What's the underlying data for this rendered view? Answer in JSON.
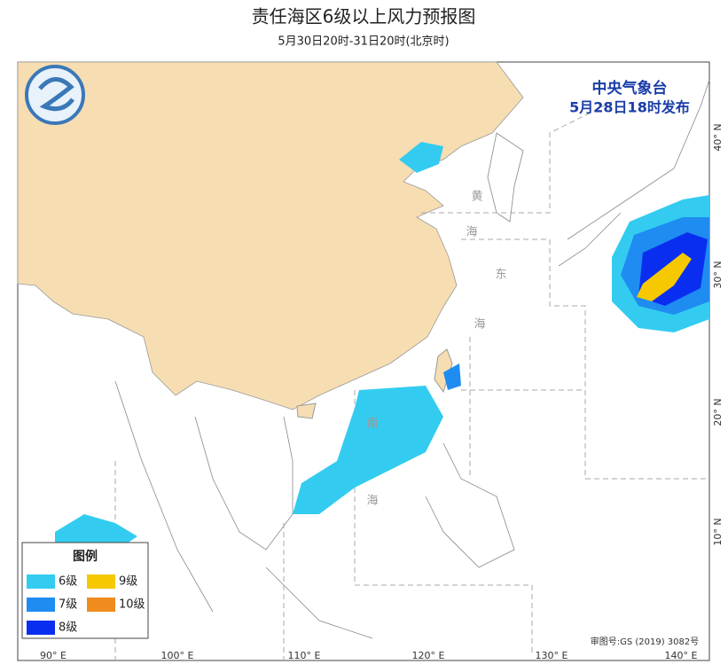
{
  "header": {
    "title": "责任海区6级以上风力预报图",
    "subtitle": "5月30日20时-31日20时(北京时)"
  },
  "issuer": {
    "agency": "中央气象台",
    "issued": "5月28日18时发布"
  },
  "legend": {
    "title": "图例",
    "items": [
      {
        "label": "6级",
        "color": "#33ccf0"
      },
      {
        "label": "7级",
        "color": "#1e8cf0"
      },
      {
        "label": "8级",
        "color": "#0a2ef0"
      },
      {
        "label": "9级",
        "color": "#f5c800"
      },
      {
        "label": "10级",
        "color": "#f08c1e"
      }
    ]
  },
  "map": {
    "longitude_labels": [
      "90° E",
      "100° E",
      "110° E",
      "120° E",
      "130° E",
      "140° E"
    ],
    "latitude_labels": [
      "40° N",
      "30° N",
      "20° N",
      "10° N"
    ],
    "sea_labels": [
      "黄",
      "海",
      "东",
      "海",
      "南",
      "海"
    ],
    "approval": "审图号:GS (2019) 3082号"
  }
}
